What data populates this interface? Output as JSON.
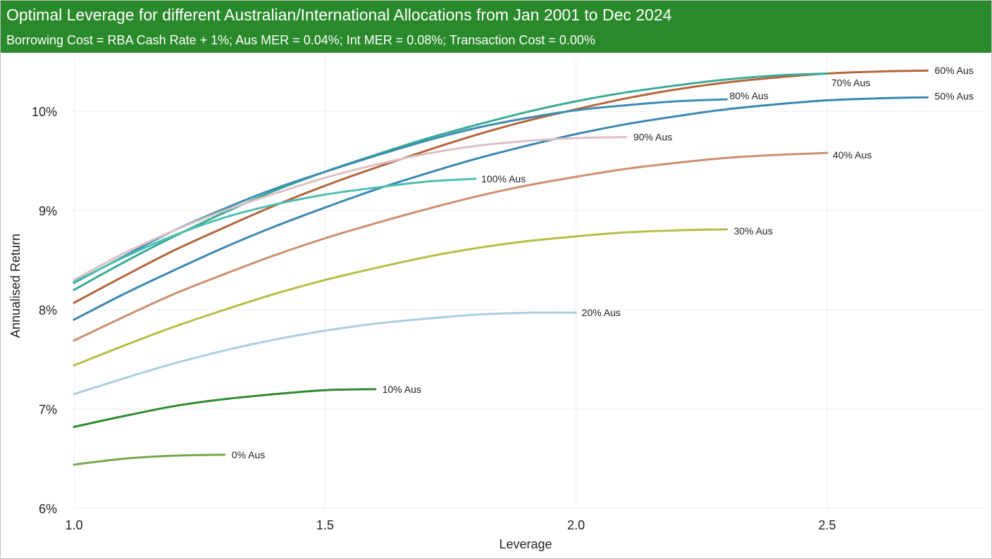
{
  "header": {
    "title": "Optimal Leverage for different Australian/International Allocations from Jan 2001 to Dec 2024",
    "subtitle": "Borrowing Cost = RBA Cash Rate + 1%; Aus MER = 0.04%; Int MER = 0.08%; Transaction Cost = 0.00%",
    "background_color": "#2a8a2b"
  },
  "chart_data": {
    "type": "line",
    "xlabel": "Leverage",
    "ylabel": "Annualised Return",
    "xlim": [
      1.0,
      2.8
    ],
    "ylim": [
      6,
      10.5
    ],
    "x_ticks": [
      1.0,
      1.5,
      2.0,
      2.5
    ],
    "x_tick_labels": [
      "1.0",
      "1.5",
      "2.0",
      "2.5"
    ],
    "y_ticks": [
      6,
      7,
      8,
      9,
      10
    ],
    "y_tick_labels": [
      "6%",
      "7%",
      "8%",
      "9%",
      "10%"
    ],
    "grid": true,
    "legend": "direct labels at line ends",
    "series": [
      {
        "name": "0% Aus",
        "color": "#74a84a",
        "x": [
          1.0,
          1.1,
          1.2,
          1.3
        ],
        "y": [
          6.44,
          6.5,
          6.53,
          6.54
        ]
      },
      {
        "name": "10% Aus",
        "color": "#2e8b2e",
        "x": [
          1.0,
          1.1,
          1.2,
          1.3,
          1.4,
          1.5,
          1.6
        ],
        "y": [
          6.82,
          6.93,
          7.03,
          7.1,
          7.15,
          7.19,
          7.2
        ]
      },
      {
        "name": "20% Aus",
        "color": "#a8cfe0",
        "x": [
          1.0,
          1.1,
          1.2,
          1.3,
          1.4,
          1.5,
          1.6,
          1.7,
          1.8,
          1.9,
          2.0
        ],
        "y": [
          7.15,
          7.31,
          7.46,
          7.59,
          7.7,
          7.79,
          7.86,
          7.91,
          7.95,
          7.97,
          7.97
        ]
      },
      {
        "name": "30% Aus",
        "color": "#b5bd45",
        "x": [
          1.0,
          1.1,
          1.2,
          1.3,
          1.4,
          1.5,
          1.6,
          1.7,
          1.8,
          1.9,
          2.0,
          2.1,
          2.2,
          2.3
        ],
        "y": [
          7.44,
          7.64,
          7.83,
          8.0,
          8.16,
          8.3,
          8.42,
          8.53,
          8.62,
          8.69,
          8.74,
          8.78,
          8.8,
          8.81
        ]
      },
      {
        "name": "40% Aus",
        "color": "#cc8f6e",
        "x": [
          1.0,
          1.1,
          1.2,
          1.3,
          1.4,
          1.5,
          1.6,
          1.7,
          1.8,
          1.9,
          2.0,
          2.1,
          2.2,
          2.3,
          2.4,
          2.5
        ],
        "y": [
          7.69,
          7.93,
          8.16,
          8.36,
          8.55,
          8.72,
          8.87,
          9.01,
          9.14,
          9.25,
          9.34,
          9.42,
          9.48,
          9.53,
          9.56,
          9.58
        ]
      },
      {
        "name": "50% Aus",
        "color": "#3b87b0",
        "x": [
          1.0,
          1.1,
          1.2,
          1.3,
          1.4,
          1.5,
          1.6,
          1.7,
          1.8,
          1.9,
          2.0,
          2.1,
          2.2,
          2.3,
          2.4,
          2.5,
          2.6,
          2.7
        ],
        "y": [
          7.9,
          8.16,
          8.4,
          8.63,
          8.84,
          9.03,
          9.21,
          9.37,
          9.52,
          9.65,
          9.77,
          9.87,
          9.95,
          10.02,
          10.07,
          10.11,
          10.13,
          10.14
        ]
      },
      {
        "name": "60% Aus",
        "color": "#b5653b",
        "x": [
          1.0,
          1.1,
          1.2,
          1.3,
          1.4,
          1.5,
          1.6,
          1.7,
          1.8,
          1.9,
          2.0,
          2.1,
          2.2,
          2.3,
          2.4,
          2.5,
          2.6,
          2.7
        ],
        "y": [
          8.07,
          8.34,
          8.6,
          8.83,
          9.05,
          9.25,
          9.43,
          9.6,
          9.76,
          9.9,
          10.02,
          10.13,
          10.22,
          10.29,
          10.34,
          10.38,
          10.4,
          10.41
        ]
      },
      {
        "name": "70% Aus",
        "color": "#3aaa96",
        "x": [
          1.0,
          1.1,
          1.2,
          1.3,
          1.4,
          1.5,
          1.6,
          1.7,
          1.8,
          1.9,
          2.0,
          2.1,
          2.2,
          2.3,
          2.4,
          2.5
        ],
        "y": [
          8.2,
          8.48,
          8.74,
          8.98,
          9.2,
          9.39,
          9.56,
          9.72,
          9.86,
          9.99,
          10.1,
          10.19,
          10.26,
          10.32,
          10.36,
          10.38
        ]
      },
      {
        "name": "80% Aus",
        "color": "#3d8db2",
        "x": [
          1.0,
          1.1,
          1.2,
          1.3,
          1.4,
          1.5,
          1.6,
          1.7,
          1.8,
          1.9,
          2.0,
          2.1,
          2.2,
          2.3
        ],
        "y": [
          8.27,
          8.54,
          8.8,
          9.02,
          9.22,
          9.39,
          9.55,
          9.7,
          9.83,
          9.93,
          10.01,
          10.06,
          10.1,
          10.12
        ]
      },
      {
        "name": "90% Aus",
        "color": "#dcbfc3",
        "x": [
          1.0,
          1.1,
          1.2,
          1.3,
          1.4,
          1.5,
          1.6,
          1.7,
          1.8,
          1.9,
          2.0,
          2.1
        ],
        "y": [
          8.3,
          8.57,
          8.8,
          9.0,
          9.17,
          9.33,
          9.46,
          9.57,
          9.65,
          9.7,
          9.73,
          9.74
        ]
      },
      {
        "name": "100% Aus",
        "color": "#4dbfb0",
        "x": [
          1.0,
          1.1,
          1.2,
          1.3,
          1.4,
          1.5,
          1.6,
          1.7,
          1.8
        ],
        "y": [
          8.28,
          8.53,
          8.75,
          8.93,
          9.06,
          9.16,
          9.23,
          9.29,
          9.32
        ]
      }
    ]
  }
}
